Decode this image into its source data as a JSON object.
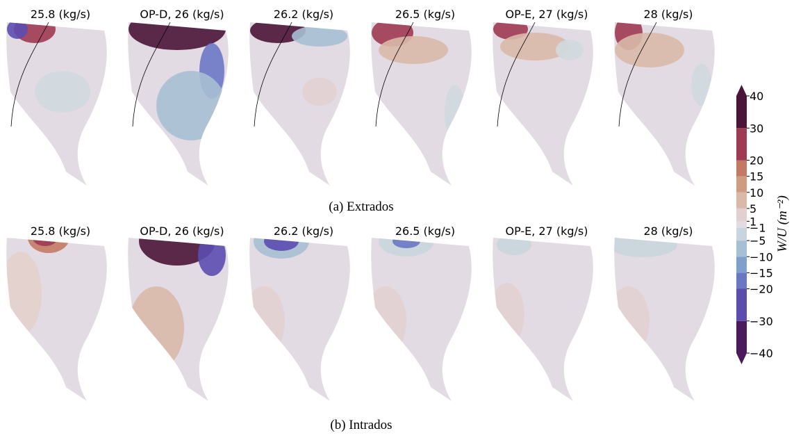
{
  "figure": {
    "rows": [
      {
        "caption": "(a) Extrados",
        "panels": [
          "25.8 (kg/s)",
          "OP-D, 26 (kg/s)",
          "26.2 (kg/s)",
          "26.5 (kg/s)",
          "OP-E, 27 (kg/s)",
          "28 (kg/s)"
        ]
      },
      {
        "caption": "(b) Intrados",
        "panels": [
          "25.8 (kg/s)",
          "OP-D, 26 (kg/s)",
          "26.2 (kg/s)",
          "26.5 (kg/s)",
          "OP-E, 27 (kg/s)",
          "28 (kg/s)"
        ]
      }
    ],
    "colorbar": {
      "label": "W/U (m⁻²)",
      "ticks": [
        {
          "value": -40,
          "label": "−40"
        },
        {
          "value": -30,
          "label": "−30"
        },
        {
          "value": -20,
          "label": "−20"
        },
        {
          "value": -15,
          "label": "−15"
        },
        {
          "value": -10,
          "label": "−10"
        },
        {
          "value": -5,
          "label": "−5"
        },
        {
          "value": -1,
          "label": "−1"
        },
        1,
        5,
        10,
        15,
        20,
        30,
        40
      ],
      "colors": [
        "#4a1a5c",
        "#5b4db0",
        "#6a78c4",
        "#7f9fcc",
        "#a6bfd2",
        "#c8d5dc",
        "#e3dbe3",
        "#e2d0d0",
        "#d9b9a8",
        "#cf9c82",
        "#c27a64",
        "#9e3a52",
        "#4a1538"
      ]
    }
  }
}
